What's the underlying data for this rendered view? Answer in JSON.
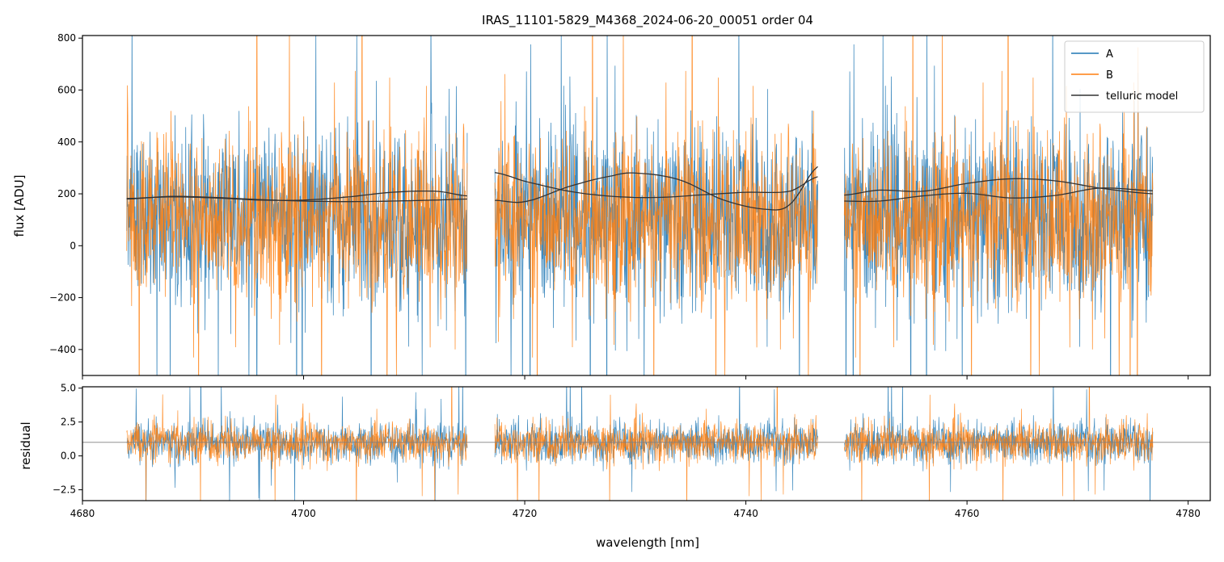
{
  "chart_data": [
    {
      "panel": "top",
      "type": "line",
      "title": "IRAS_11101-5829_M4368_2024-06-20_00051  order 04",
      "xlabel": "",
      "ylabel": "flux [ADU]",
      "xlim": [
        4680,
        4782
      ],
      "ylim": [
        -500,
        810
      ],
      "yticks": [
        -400,
        -200,
        0,
        200,
        400,
        600,
        800
      ],
      "yticklabels": [
        "−400",
        "−200",
        "0",
        "200",
        "400",
        "600",
        "800"
      ],
      "xticks": [
        4680,
        4700,
        4720,
        4740,
        4760,
        4780
      ],
      "grid": false,
      "legend": {
        "placement": "top-right",
        "entries": [
          {
            "label": "A",
            "color": "#1f77b4"
          },
          {
            "label": "B",
            "color": "#ff7f0e"
          },
          {
            "label": "telluric model",
            "color": "#333333"
          }
        ]
      },
      "segments": [
        {
          "x_range": [
            4684.0,
            4714.8
          ]
        },
        {
          "x_range": [
            4717.3,
            4746.5
          ]
        },
        {
          "x_range": [
            4748.9,
            4776.8
          ]
        }
      ],
      "series": [
        {
          "name": "A",
          "color": "#1f77b4",
          "description_level": 110,
          "spread": 170
        },
        {
          "name": "B",
          "color": "#ff7f0e",
          "description_level": 100,
          "spread": 160
        },
        {
          "name": "telluric model",
          "color": "#333333",
          "curves": [
            {
              "x": [
                4684.0,
                4688,
                4692,
                4696,
                4700,
                4704,
                4708,
                4712,
                4714.8
              ],
              "y": [
                180,
                190,
                186,
                178,
                172,
                170,
                172,
                176,
                180
              ]
            },
            {
              "x": [
                4684.0,
                4688,
                4692,
                4696,
                4700,
                4704,
                4708,
                4712,
                4714.8
              ],
              "y": [
                182,
                188,
                184,
                176,
                176,
                188,
                206,
                210,
                192
              ]
            },
            {
              "x": [
                4717.3,
                4720,
                4724,
                4728,
                4732,
                4736,
                4740,
                4744,
                4746.5
              ],
              "y": [
                282,
                248,
                210,
                190,
                186,
                196,
                206,
                210,
                266
              ]
            },
            {
              "x": [
                4717.3,
                4720,
                4724,
                4728,
                4730,
                4734,
                4738,
                4742,
                4744,
                4746.5
              ],
              "y": [
                175,
                170,
                228,
                270,
                280,
                254,
                176,
                140,
                160,
                305
              ]
            },
            {
              "x": [
                4748.9,
                4752,
                4756,
                4760,
                4764,
                4768,
                4772,
                4776.8
              ],
              "y": [
                195,
                214,
                210,
                240,
                258,
                250,
                222,
                200
              ]
            },
            {
              "x": [
                4748.9,
                4752,
                4756,
                4760,
                4764,
                4768,
                4772,
                4776.8
              ],
              "y": [
                172,
                172,
                192,
                202,
                184,
                194,
                222,
                212
              ]
            }
          ]
        }
      ]
    },
    {
      "panel": "bottom",
      "type": "line",
      "title": "",
      "xlabel": "wavelength [nm]",
      "ylabel": "residual",
      "xlim": [
        4680,
        4782
      ],
      "ylim": [
        -3.3,
        5.1
      ],
      "yticks": [
        -2.5,
        0.0,
        2.5,
        5.0
      ],
      "yticklabels": [
        "−2.5",
        "0.0",
        "2.5",
        "5.0"
      ],
      "xticks": [
        4680,
        4700,
        4720,
        4740,
        4760,
        4780
      ],
      "xticklabels": [
        "4680",
        "4700",
        "4720",
        "4740",
        "4760",
        "4780"
      ],
      "grid": false,
      "reference_line": {
        "y": 1.0,
        "color": "#808080"
      },
      "series": [
        {
          "name": "A",
          "color": "#1f77b4"
        },
        {
          "name": "B",
          "color": "#ff7f0e"
        }
      ]
    }
  ]
}
